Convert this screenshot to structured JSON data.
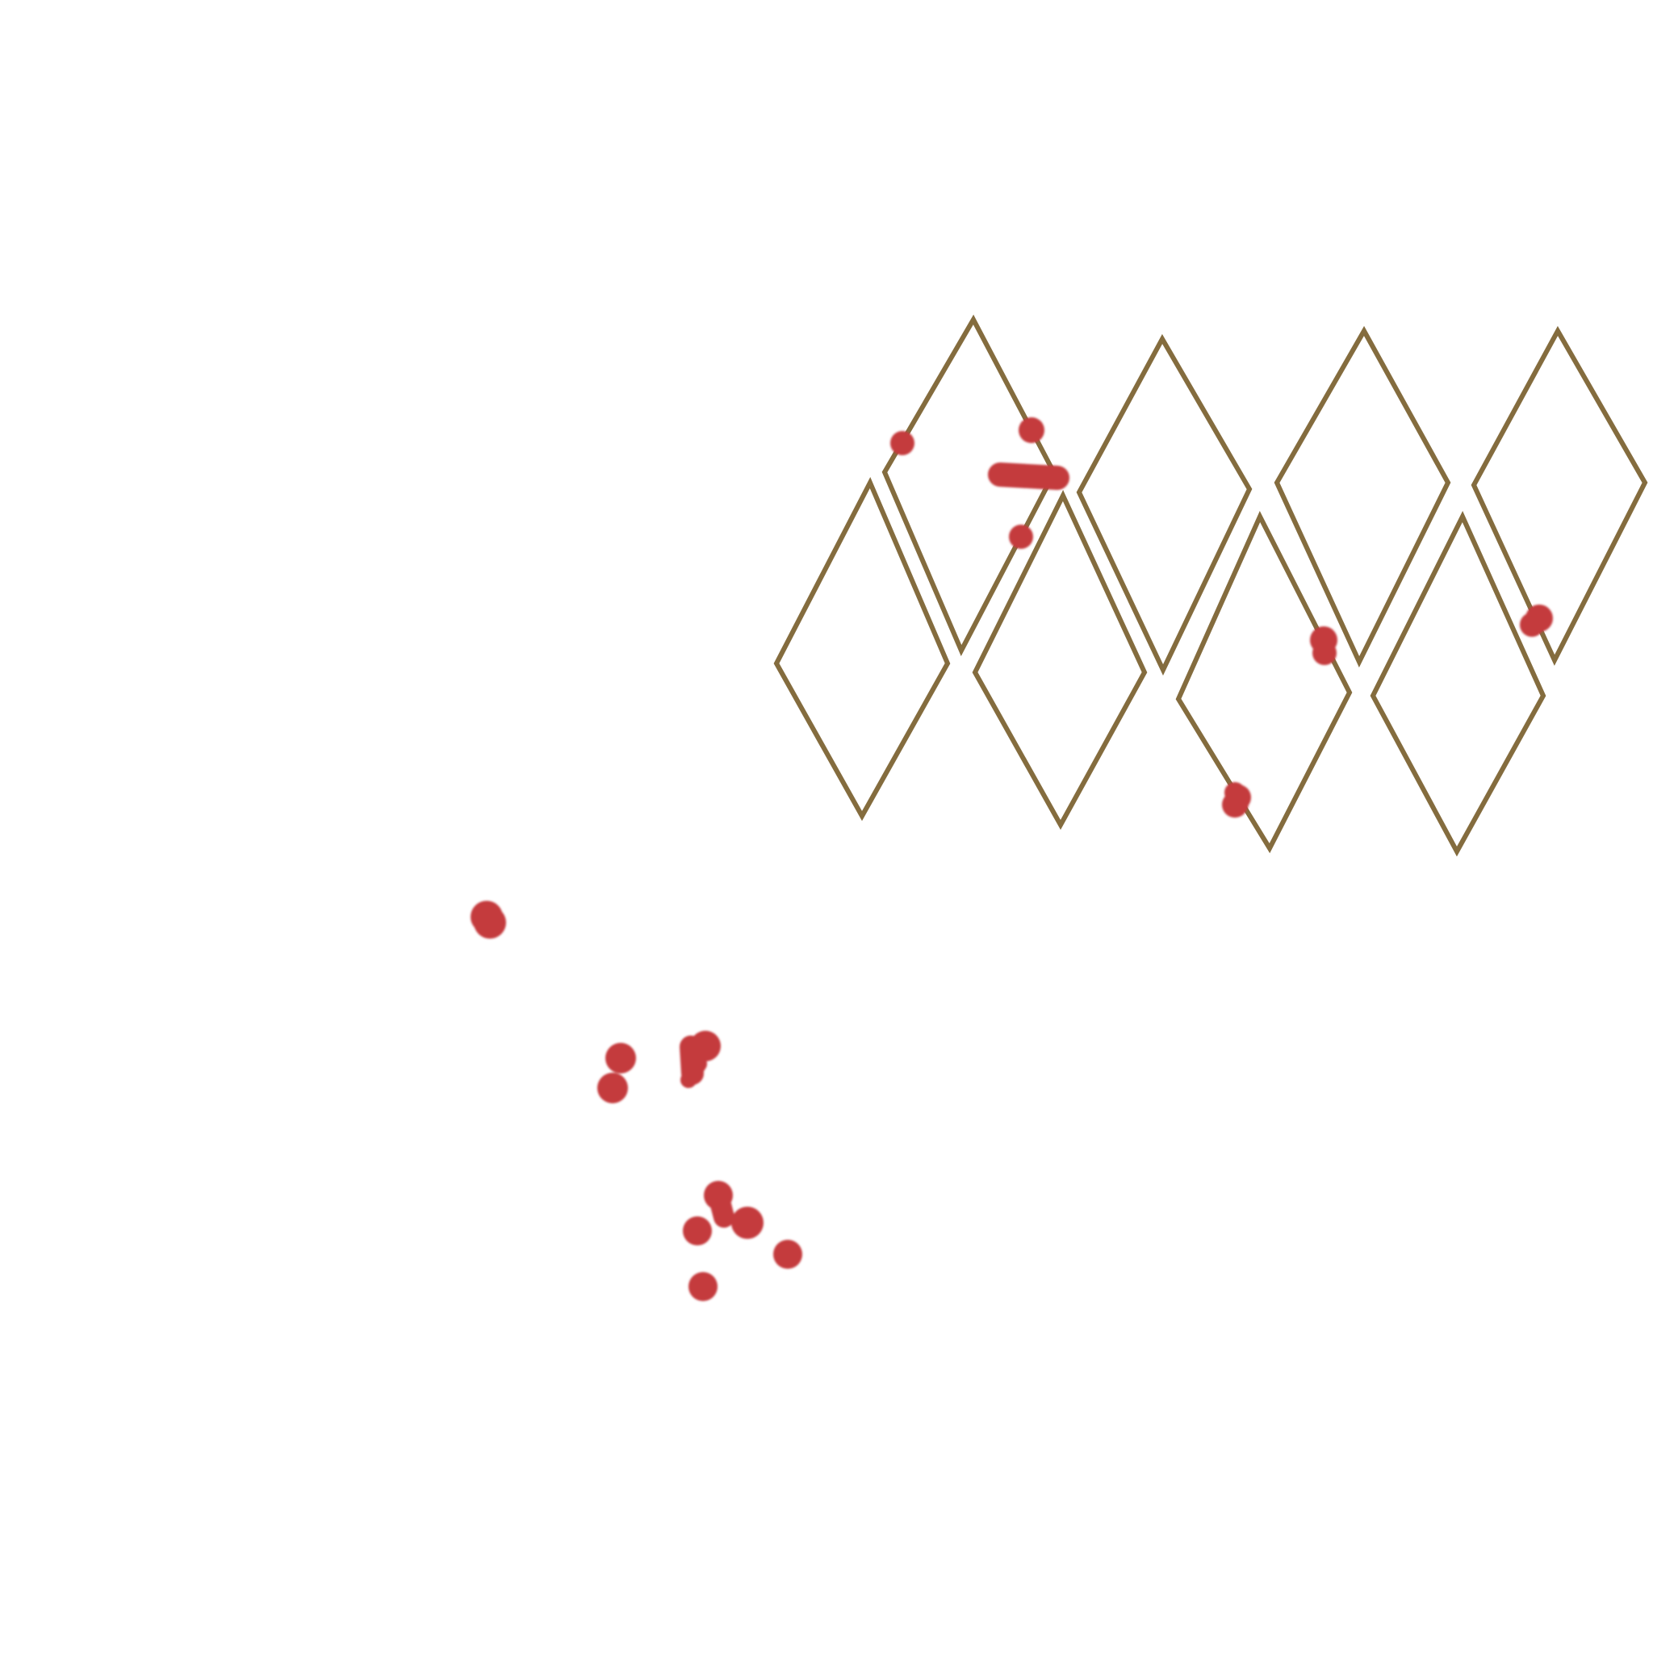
{
  "canvas": {
    "background": "#ffffff"
  },
  "colors": {
    "diamond_outline": "#846c3e",
    "mark": "#c43a3c"
  },
  "diamond_pattern": {
    "shape": "diamond-outline",
    "count": 10
  },
  "paint_marks": {
    "count": 20
  }
}
